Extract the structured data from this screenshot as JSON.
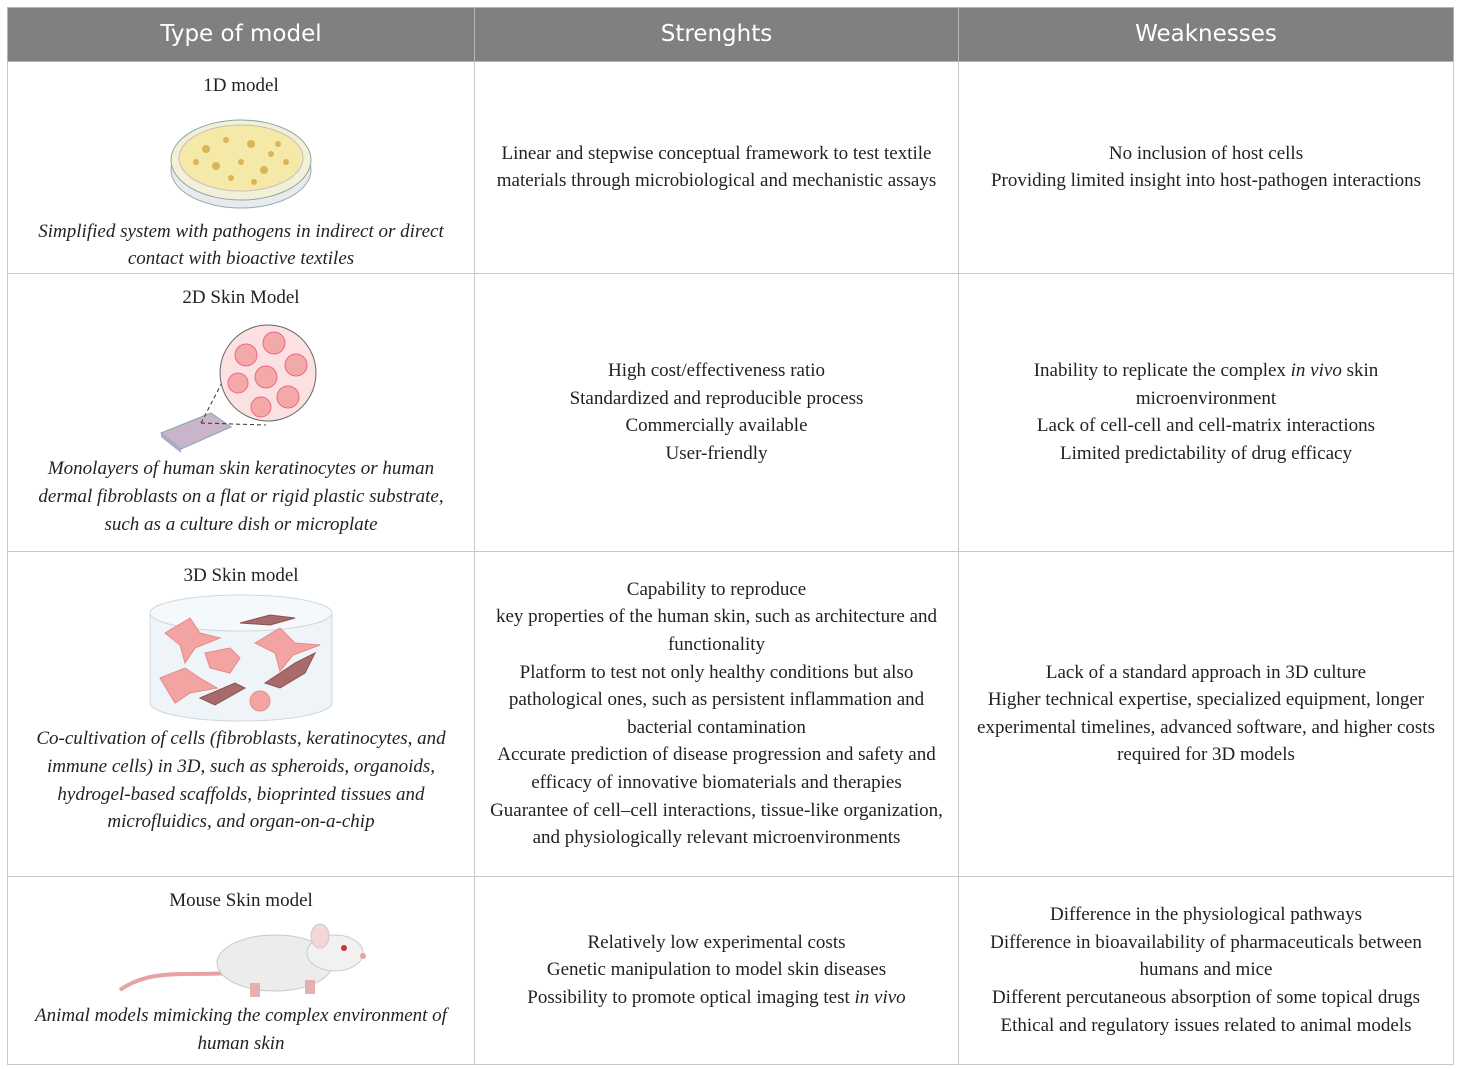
{
  "table": {
    "header": [
      "Type of model",
      "Strenghts",
      "Weaknesses"
    ],
    "rows": [
      {
        "model": "1D model",
        "description": "Simplified system with pathogens in indirect or direct contact with bioactive textiles",
        "strengths": [
          "Linear and stepwise conceptual framework to test textile materials through microbiological and mechanistic assays"
        ],
        "weaknesses": [
          "No inclusion of host cells",
          "Providing limited insight into host-pathogen interactions"
        ]
      },
      {
        "model": "2D Skin Model",
        "description": "Monolayers of human skin keratinocytes or human dermal fibroblasts on a flat or rigid plastic substrate, such as a culture dish or microplate",
        "strengths": [
          "High cost/effectiveness ratio",
          "Standardized and reproducible process",
          "Commercially available",
          "User-friendly"
        ],
        "weaknesses": [
          [
            "Inability to replicate the complex",
            "in vivo",
            "skin microenvironment"
          ],
          "Lack of cell-cell and cell-matrix interactions",
          "Limited predictability of drug efficacy"
        ]
      },
      {
        "model": "3D Skin model",
        "description": "Co-cultivation of cells (fibroblasts, keratinocytes, and immune cells) in 3D, such as spheroids, organoids, hydrogel-based scaffolds, bioprinted tissues and microfluidics, and organ-on-a-chip",
        "strengths": [
          "Capability to reproduce",
          "key properties of the human skin, such as architecture and functionality",
          "Platform to test not only healthy conditions but also pathological ones, such as persistent inflammation and bacterial contamination",
          "Accurate prediction of disease progression and safety and efficacy of innovative biomaterials and therapies",
          "Guarantee of cell–cell interactions, tissue-like organization, and physiologically relevant microenvironments"
        ],
        "weaknesses": [
          "Lack of a standard approach in 3D culture",
          "Higher technical expertise, specialized equipment, longer experimental timelines, advanced software, and higher costs required for 3D models"
        ]
      },
      {
        "model": "Mouse Skin model",
        "description": "Animal models mimicking the complex environment of human skin",
        "strengths": [
          "Relatively low experimental costs",
          "Genetic manipulation to model skin diseases",
          [
            "Possibility to promote optical imaging test",
            "in vivo"
          ]
        ],
        "weaknesses": [
          "Difference in the physiological pathways",
          "Difference in bioavailability of pharmaceuticals between humans and mice",
          "Different percutaneous absorption of some topical drugs",
          "Ethical and regulatory issues related to animal models"
        ]
      }
    ]
  }
}
